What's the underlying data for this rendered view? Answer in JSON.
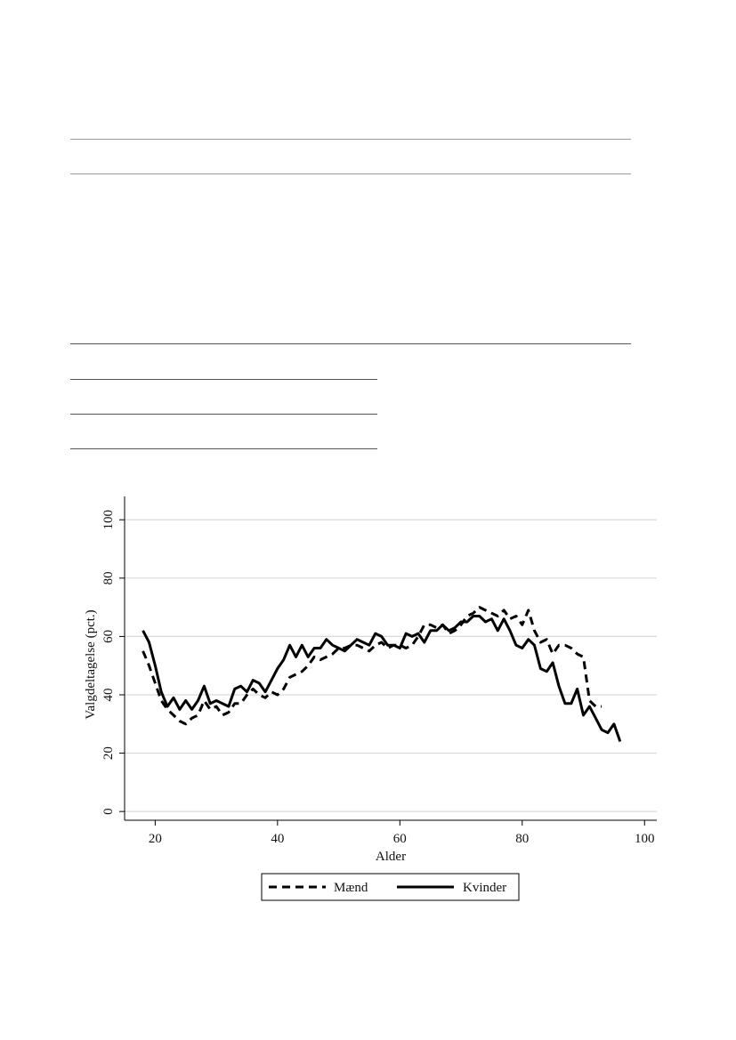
{
  "document": {
    "rules": [
      "top-rule-1",
      "top-rule-2",
      "mid-rule-1",
      "short-rule-1",
      "short-rule-2",
      "short-rule-3"
    ]
  },
  "chart_data": {
    "type": "line",
    "xlabel": "Alder",
    "ylabel": "Valgdeltagelse (pct.)",
    "xlim": [
      15,
      102
    ],
    "ylim": [
      -3,
      108
    ],
    "xticks": [
      20,
      40,
      60,
      80,
      100
    ],
    "yticks": [
      0,
      20,
      40,
      60,
      80,
      100
    ],
    "grid": "horizontal",
    "legend_position": "bottom-center",
    "series": [
      {
        "name": "Mænd",
        "style": "dashed",
        "color": "#000000",
        "x": [
          18,
          19,
          20,
          21,
          22,
          23,
          24,
          25,
          26,
          27,
          28,
          29,
          30,
          31,
          32,
          33,
          34,
          35,
          36,
          37,
          38,
          39,
          40,
          41,
          42,
          43,
          44,
          45,
          46,
          47,
          48,
          49,
          50,
          51,
          52,
          53,
          54,
          55,
          56,
          57,
          58,
          59,
          60,
          61,
          62,
          63,
          64,
          65,
          66,
          67,
          68,
          69,
          70,
          71,
          72,
          73,
          74,
          75,
          76,
          77,
          78,
          79,
          80,
          81,
          82,
          83,
          84,
          85,
          86,
          87,
          88,
          89,
          90,
          91,
          92,
          93
        ],
        "values": [
          55,
          50,
          44,
          38,
          35,
          33,
          31,
          30,
          32,
          33,
          38,
          35,
          36,
          33,
          34,
          37,
          37,
          40,
          42,
          40,
          39,
          41,
          40,
          42,
          46,
          47,
          48,
          50,
          53,
          52,
          53,
          54,
          56,
          56,
          57,
          57,
          56,
          55,
          57,
          58,
          56,
          57,
          57,
          56,
          57,
          60,
          64,
          64,
          63,
          64,
          61,
          62,
          64,
          67,
          68,
          70,
          69,
          68,
          67,
          69,
          66,
          67,
          64,
          69,
          62,
          58,
          59,
          54,
          57,
          57,
          56,
          54,
          53,
          38,
          36,
          36
        ]
      },
      {
        "name": "Kvinder",
        "style": "solid",
        "color": "#000000",
        "x": [
          18,
          19,
          20,
          21,
          22,
          23,
          24,
          25,
          26,
          27,
          28,
          29,
          30,
          31,
          32,
          33,
          34,
          35,
          36,
          37,
          38,
          39,
          40,
          41,
          42,
          43,
          44,
          45,
          46,
          47,
          48,
          49,
          50,
          51,
          52,
          53,
          54,
          55,
          56,
          57,
          58,
          59,
          60,
          61,
          62,
          63,
          64,
          65,
          66,
          67,
          68,
          69,
          70,
          71,
          72,
          73,
          74,
          75,
          76,
          77,
          78,
          79,
          80,
          81,
          82,
          83,
          84,
          85,
          86,
          87,
          88,
          89,
          90,
          91,
          92,
          93,
          94,
          95,
          96
        ],
        "values": [
          62,
          58,
          50,
          41,
          36,
          39,
          35,
          38,
          35,
          38,
          43,
          37,
          38,
          37,
          36,
          42,
          43,
          41,
          45,
          44,
          41,
          45,
          49,
          52,
          57,
          53,
          57,
          53,
          56,
          56,
          59,
          57,
          56,
          55,
          57,
          59,
          58,
          57,
          61,
          60,
          57,
          57,
          56,
          61,
          60,
          61,
          58,
          62,
          62,
          64,
          62,
          63,
          65,
          65,
          67,
          67,
          65,
          66,
          62,
          66,
          62,
          57,
          56,
          59,
          57,
          49,
          48,
          51,
          43,
          37,
          37,
          42,
          33,
          36,
          32,
          28,
          27,
          30,
          24
        ]
      }
    ]
  }
}
